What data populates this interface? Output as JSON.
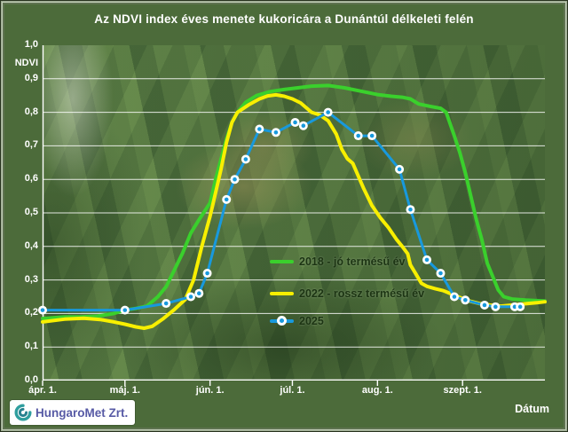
{
  "frame": {
    "background_color": "#4c6b3a",
    "branding": "HungaroMet Zrt."
  },
  "chart_data": {
    "type": "line",
    "title": "Az NDVI index éves menete kukoricára a Dunántúl délkeleti felén",
    "xlabel": "Dátum",
    "ylabel": "NDVI",
    "grid": true,
    "legend_position": "inside-center-right",
    "x_axis": {
      "unit": "days since Apr 1",
      "range": [
        0,
        183
      ],
      "tick_positions_days": [
        0,
        30,
        61,
        91,
        122,
        153
      ],
      "tick_labels": [
        "ápr. 1.",
        "máj. 1.",
        "jún. 1.",
        "júl. 1.",
        "aug. 1.",
        "szept. 1."
      ]
    },
    "y_axis": {
      "range": [
        0,
        1
      ],
      "step": 0.1,
      "tick_labels": [
        "1,0",
        "0,9",
        "0,8",
        "0,7",
        "0,6",
        "0,5",
        "0,4",
        "0,3",
        "0,2",
        "0,1",
        "0,0"
      ]
    },
    "colors": {
      "gridline": "rgba(255,255,255,0.85)",
      "axis": "#ffffff",
      "legend_text": "#1c3413",
      "title_text": "#ffffff"
    },
    "series": [
      {
        "name": "2018 - jó termésű év",
        "color": "#3ad02c",
        "line_width": 4,
        "marker": false,
        "points": [
          [
            0,
            0.185
          ],
          [
            8,
            0.19
          ],
          [
            14,
            0.19
          ],
          [
            20,
            0.192
          ],
          [
            26,
            0.2
          ],
          [
            30,
            0.21
          ],
          [
            34,
            0.215
          ],
          [
            38,
            0.222
          ],
          [
            42,
            0.25
          ],
          [
            45,
            0.28
          ],
          [
            48,
            0.33
          ],
          [
            51,
            0.38
          ],
          [
            54,
            0.44
          ],
          [
            57,
            0.48
          ],
          [
            61,
            0.53
          ],
          [
            63,
            0.6
          ],
          [
            65,
            0.66
          ],
          [
            67,
            0.72
          ],
          [
            69,
            0.77
          ],
          [
            71,
            0.8
          ],
          [
            74,
            0.83
          ],
          [
            78,
            0.85
          ],
          [
            83,
            0.862
          ],
          [
            88,
            0.868
          ],
          [
            93,
            0.873
          ],
          [
            98,
            0.878
          ],
          [
            104,
            0.88
          ],
          [
            110,
            0.873
          ],
          [
            116,
            0.863
          ],
          [
            122,
            0.853
          ],
          [
            127,
            0.848
          ],
          [
            131,
            0.845
          ],
          [
            134,
            0.84
          ],
          [
            137,
            0.825
          ],
          [
            141,
            0.818
          ],
          [
            145,
            0.812
          ],
          [
            147,
            0.8
          ],
          [
            150,
            0.73
          ],
          [
            152,
            0.68
          ],
          [
            154,
            0.62
          ],
          [
            156,
            0.55
          ],
          [
            158,
            0.48
          ],
          [
            160,
            0.42
          ],
          [
            162,
            0.35
          ],
          [
            164,
            0.31
          ],
          [
            166,
            0.27
          ],
          [
            168,
            0.25
          ],
          [
            171,
            0.243
          ],
          [
            176,
            0.24
          ],
          [
            183,
            0.237
          ]
        ]
      },
      {
        "name": "2022 - rossz termésű év",
        "color": "#f8ef00",
        "line_width": 4,
        "marker": false,
        "points": [
          [
            0,
            0.175
          ],
          [
            8,
            0.183
          ],
          [
            15,
            0.186
          ],
          [
            21,
            0.182
          ],
          [
            26,
            0.175
          ],
          [
            30,
            0.168
          ],
          [
            34,
            0.16
          ],
          [
            37,
            0.156
          ],
          [
            40,
            0.162
          ],
          [
            44,
            0.185
          ],
          [
            48,
            0.212
          ],
          [
            52,
            0.242
          ],
          [
            55,
            0.3
          ],
          [
            58,
            0.4
          ],
          [
            61,
            0.49
          ],
          [
            63,
            0.56
          ],
          [
            65,
            0.63
          ],
          [
            67,
            0.71
          ],
          [
            69,
            0.77
          ],
          [
            71,
            0.8
          ],
          [
            75,
            0.822
          ],
          [
            79,
            0.84
          ],
          [
            82,
            0.849
          ],
          [
            85,
            0.852
          ],
          [
            88,
            0.848
          ],
          [
            91,
            0.84
          ],
          [
            94,
            0.828
          ],
          [
            98,
            0.8
          ],
          [
            101,
            0.792
          ],
          [
            104,
            0.775
          ],
          [
            107,
            0.735
          ],
          [
            109,
            0.69
          ],
          [
            111,
            0.662
          ],
          [
            113,
            0.648
          ],
          [
            115,
            0.61
          ],
          [
            117,
            0.572
          ],
          [
            120,
            0.522
          ],
          [
            123,
            0.486
          ],
          [
            126,
            0.456
          ],
          [
            129,
            0.42
          ],
          [
            131,
            0.4
          ],
          [
            133,
            0.378
          ],
          [
            134,
            0.345
          ],
          [
            136,
            0.318
          ],
          [
            138,
            0.29
          ],
          [
            140,
            0.281
          ],
          [
            143,
            0.274
          ],
          [
            146,
            0.268
          ],
          [
            149,
            0.258
          ],
          [
            152,
            0.248
          ],
          [
            155,
            0.238
          ],
          [
            159,
            0.23
          ],
          [
            163,
            0.225
          ],
          [
            167,
            0.222
          ],
          [
            171,
            0.225
          ],
          [
            176,
            0.229
          ],
          [
            180,
            0.232
          ],
          [
            183,
            0.235
          ]
        ]
      },
      {
        "name": "2025",
        "color": "#1899dd",
        "line_width": 3,
        "marker": true,
        "marker_style": "white-circle-blue-dot",
        "points": [
          [
            0,
            0.21
          ],
          [
            30,
            0.21
          ],
          [
            45,
            0.23
          ],
          [
            54,
            0.25
          ],
          [
            57,
            0.26
          ],
          [
            60,
            0.32
          ],
          [
            67,
            0.54
          ],
          [
            70,
            0.6
          ],
          [
            74,
            0.66
          ],
          [
            79,
            0.75
          ],
          [
            85,
            0.74
          ],
          [
            92,
            0.77
          ],
          [
            95,
            0.76
          ],
          [
            104,
            0.8
          ],
          [
            115,
            0.73
          ],
          [
            120,
            0.73
          ],
          [
            130,
            0.63
          ],
          [
            134,
            0.51
          ],
          [
            140,
            0.36
          ],
          [
            145,
            0.32
          ],
          [
            150,
            0.25
          ],
          [
            154,
            0.24
          ],
          [
            161,
            0.225
          ],
          [
            165,
            0.22
          ],
          [
            172,
            0.22
          ],
          [
            174,
            0.22
          ]
        ]
      }
    ]
  }
}
